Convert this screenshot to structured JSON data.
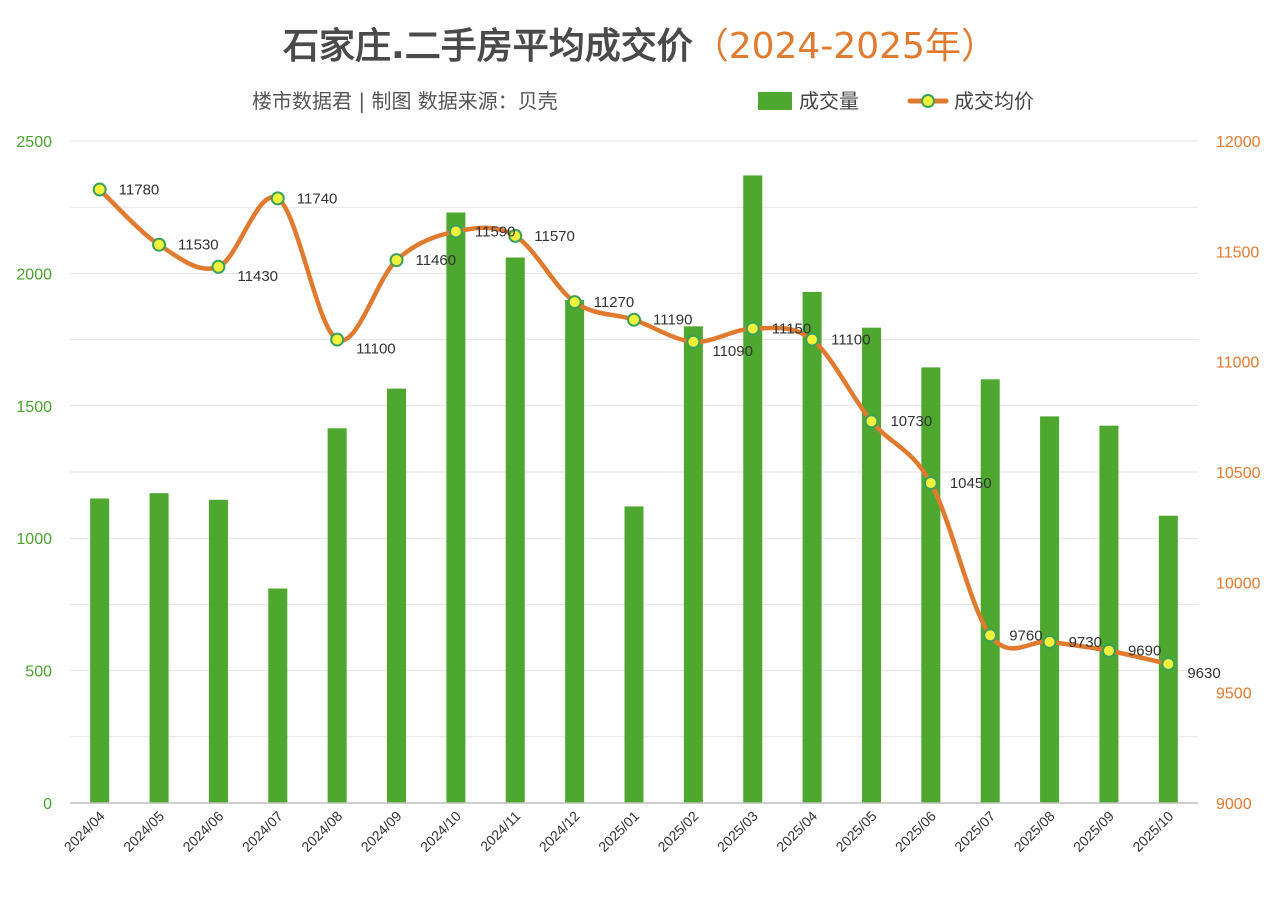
{
  "chart_data": {
    "type": "bar+line",
    "title": "石家庄.二手房平均成交价",
    "title_years": "（2024-2025年）",
    "subtitle": "楼市数据君 | 制图  数据来源：贝壳",
    "categories": [
      "2024/04",
      "2024/05",
      "2024/06",
      "2024/07",
      "2024/08",
      "2024/09",
      "2024/10",
      "2024/11",
      "2024/12",
      "2025/01",
      "2025/02",
      "2025/03",
      "2025/04",
      "2025/05",
      "2025/06",
      "2025/07",
      "2025/08",
      "2025/09",
      "2025/10"
    ],
    "series": [
      {
        "name": "成交量",
        "type": "bar",
        "axis": "left",
        "color": "#4ea72e",
        "values": [
          1150,
          1170,
          1145,
          810,
          1415,
          1565,
          2230,
          2060,
          1900,
          1120,
          1800,
          2370,
          1930,
          1795,
          1645,
          1600,
          1460,
          1425,
          1085
        ]
      },
      {
        "name": "成交均价",
        "type": "line",
        "axis": "right",
        "color": "#e07a2f",
        "marker_fill": "#f2f23a",
        "marker_edge": "#3aa05a",
        "values": [
          11780,
          11530,
          11430,
          11740,
          11100,
          11460,
          11590,
          11570,
          11270,
          11190,
          11090,
          11150,
          11100,
          10730,
          10450,
          9760,
          9730,
          9690,
          9630
        ],
        "labels": [
          "11780",
          "11530",
          "11430",
          "11740",
          "11100",
          "11460",
          "11590",
          "11570",
          "11270",
          "11190",
          "11090",
          "11150",
          "11100",
          "10730",
          "10450",
          "9760",
          "9730",
          "9690",
          "9630"
        ]
      }
    ],
    "y_left": {
      "ylim": [
        0,
        2500
      ],
      "ticks": [
        "0",
        "500",
        "1000",
        "1500",
        "2000",
        "2500"
      ],
      "color": "#4aa32e"
    },
    "y_right": {
      "ylim": [
        9000,
        12000
      ],
      "ticks": [
        "9000",
        "9500",
        "10000",
        "10500",
        "11000",
        "11500",
        "12000"
      ],
      "color": "#e07a2f"
    },
    "grid": true,
    "legend_position": "top-right"
  }
}
